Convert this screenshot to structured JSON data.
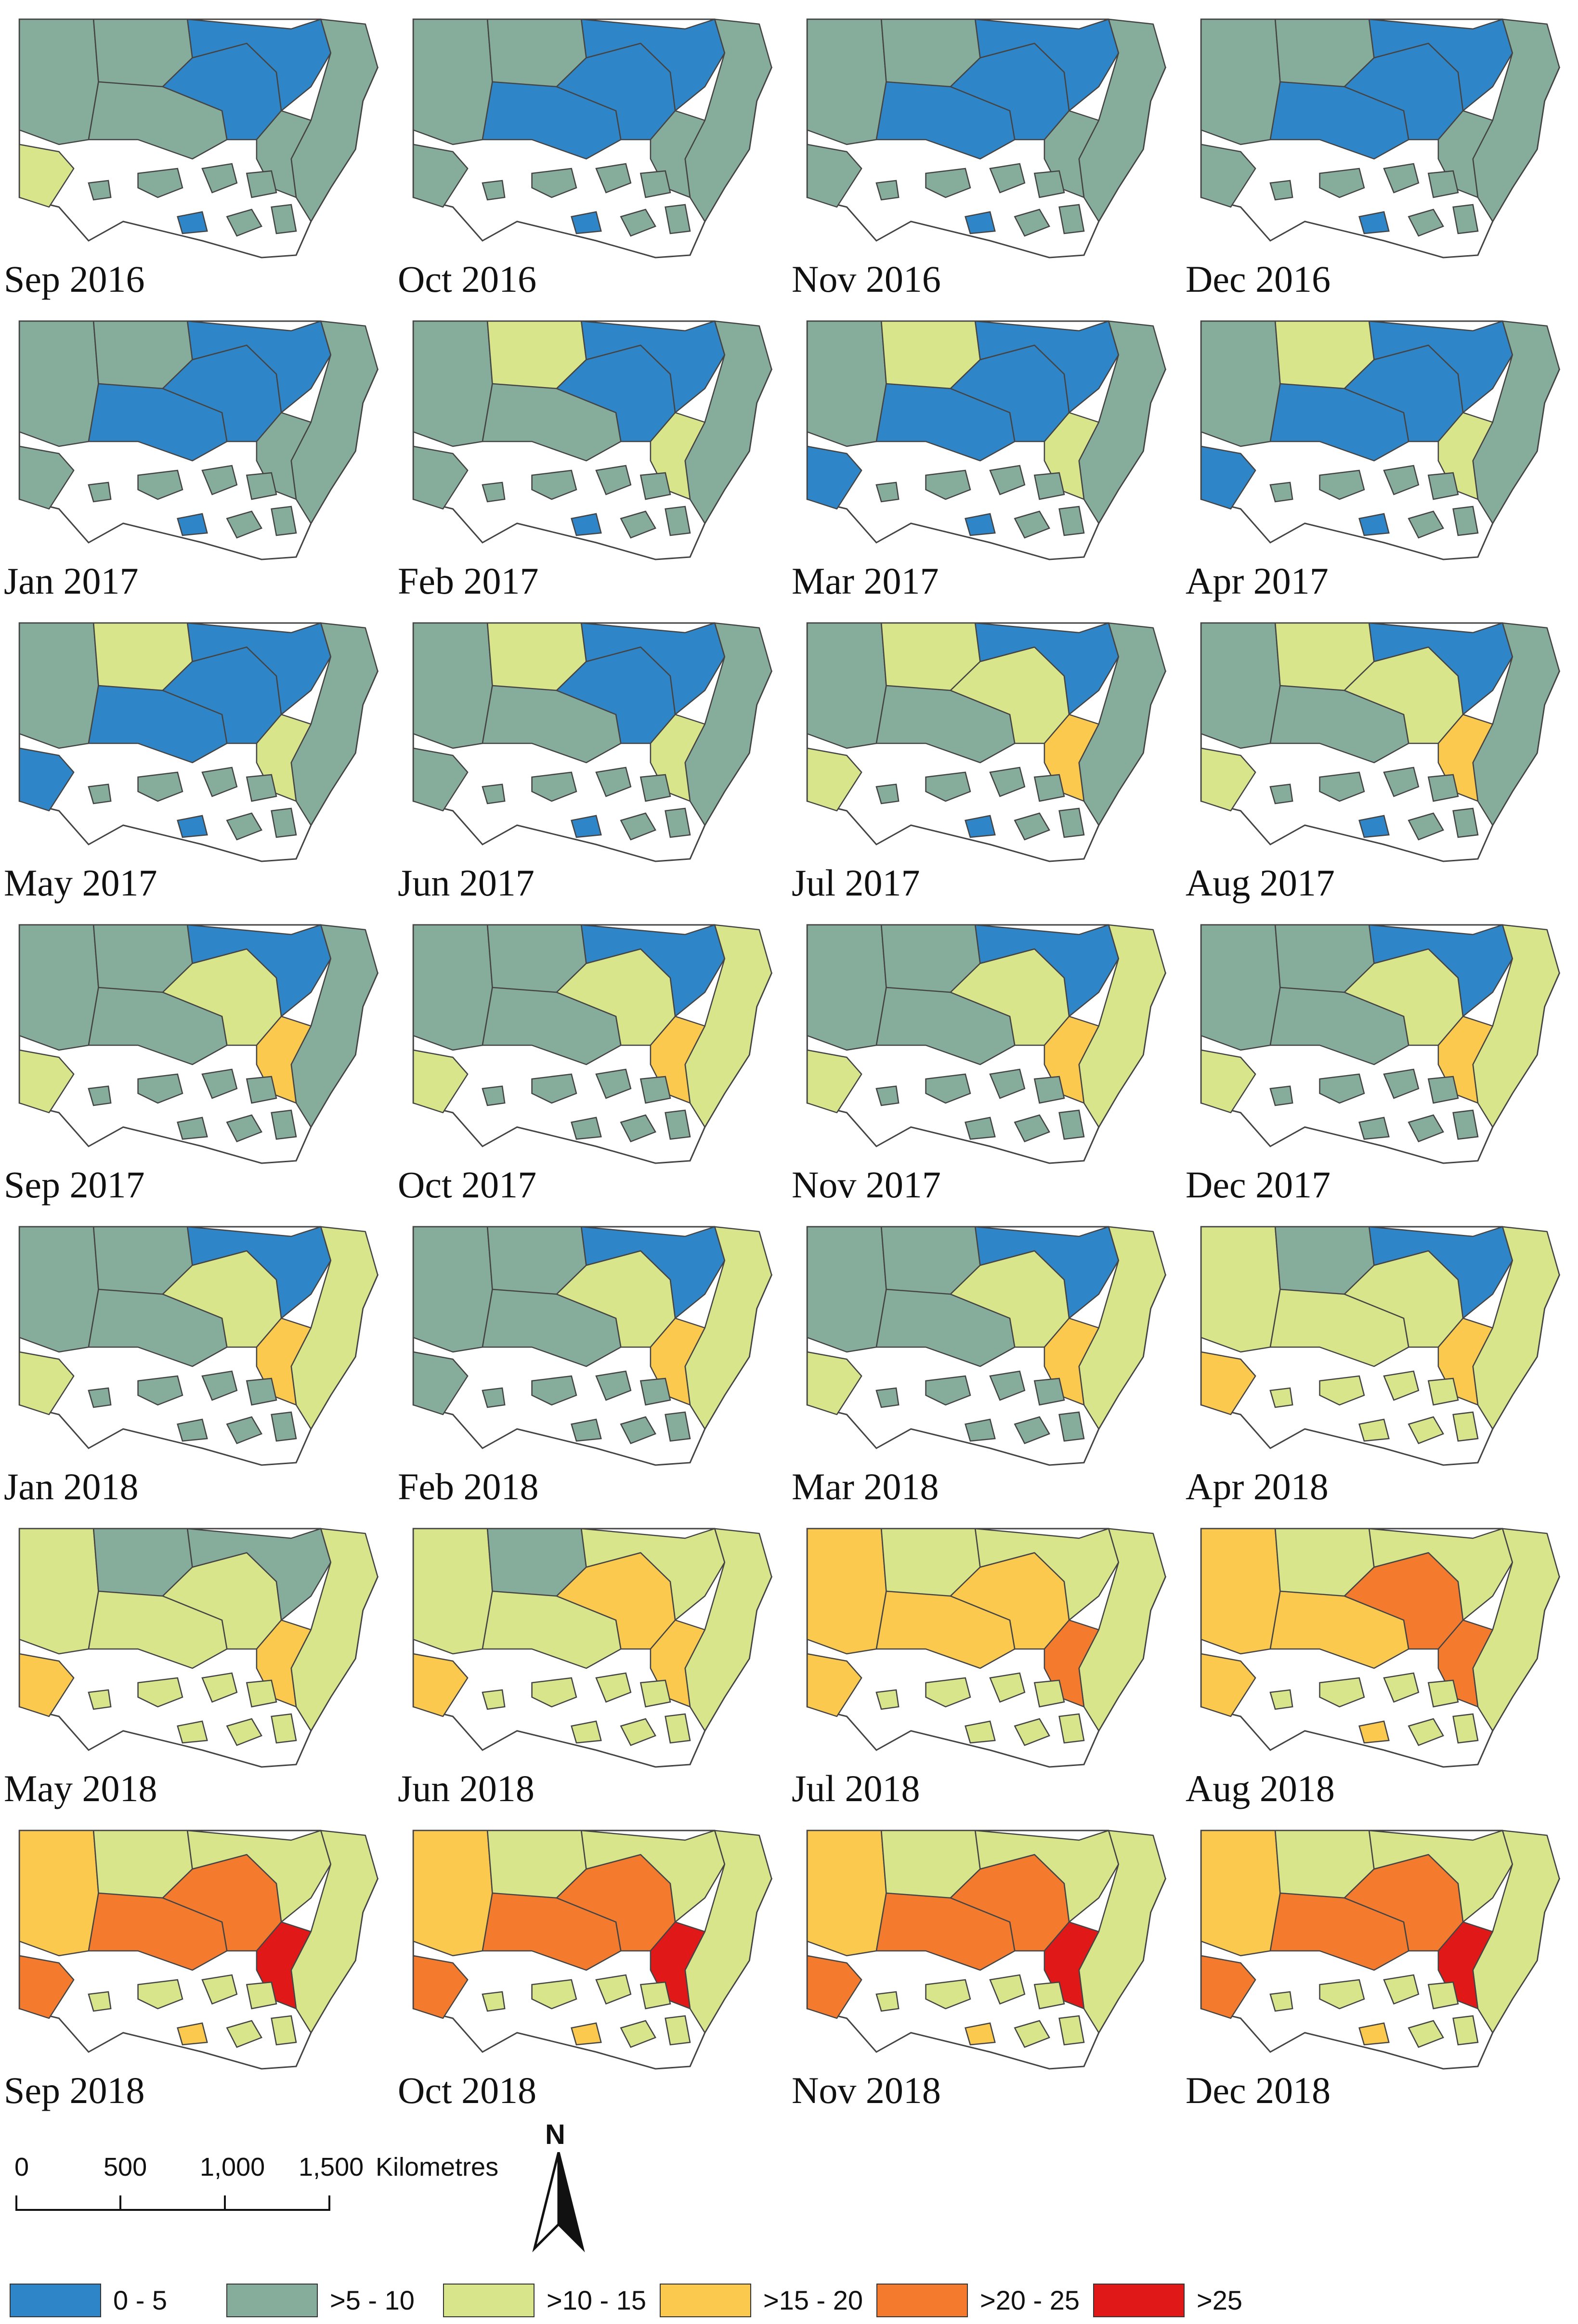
{
  "colors": {
    "0-5": "#2e86c9",
    ">5-10": "#86ad9b",
    ">10-15": "#d9e58a",
    ">15-20": "#fbc94e",
    ">20-25": "#f47b2e",
    ">25": "#e01818",
    "outline": "#444444"
  },
  "maps": [
    {
      "label": "Sep 2016",
      "west": ">5-10",
      "nw": ">5-10",
      "cwest": ">5-10",
      "central": "0-5",
      "ne": "0-5",
      "coast": ">5-10",
      "east": ">5-10",
      "sw": ">10-15",
      "south": "0-5",
      "scattered": ">5-10"
    },
    {
      "label": "Oct 2016",
      "west": ">5-10",
      "nw": ">5-10",
      "cwest": "0-5",
      "central": "0-5",
      "ne": "0-5",
      "coast": ">5-10",
      "east": ">5-10",
      "sw": ">5-10",
      "south": "0-5",
      "scattered": ">5-10"
    },
    {
      "label": "Nov 2016",
      "west": ">5-10",
      "nw": ">5-10",
      "cwest": "0-5",
      "central": "0-5",
      "ne": "0-5",
      "coast": ">5-10",
      "east": ">5-10",
      "sw": ">5-10",
      "south": "0-5",
      "scattered": ">5-10"
    },
    {
      "label": "Dec 2016",
      "west": ">5-10",
      "nw": ">5-10",
      "cwest": "0-5",
      "central": "0-5",
      "ne": "0-5",
      "coast": ">5-10",
      "east": ">5-10",
      "sw": ">5-10",
      "south": "0-5",
      "scattered": ">5-10"
    },
    {
      "label": "Jan 2017",
      "west": ">5-10",
      "nw": ">5-10",
      "cwest": "0-5",
      "central": "0-5",
      "ne": "0-5",
      "coast": ">5-10",
      "east": ">5-10",
      "sw": ">5-10",
      "south": "0-5",
      "scattered": ">5-10"
    },
    {
      "label": "Feb 2017",
      "west": ">5-10",
      "nw": ">10-15",
      "cwest": ">5-10",
      "central": "0-5",
      "ne": "0-5",
      "coast": ">5-10",
      "east": ">10-15",
      "sw": ">5-10",
      "south": "0-5",
      "scattered": ">5-10"
    },
    {
      "label": "Mar 2017",
      "west": ">5-10",
      "nw": ">10-15",
      "cwest": "0-5",
      "central": "0-5",
      "ne": "0-5",
      "coast": ">5-10",
      "east": ">10-15",
      "sw": "0-5",
      "south": "0-5",
      "scattered": ">5-10"
    },
    {
      "label": "Apr 2017",
      "west": ">5-10",
      "nw": ">10-15",
      "cwest": "0-5",
      "central": "0-5",
      "ne": "0-5",
      "coast": ">5-10",
      "east": ">10-15",
      "sw": "0-5",
      "south": "0-5",
      "scattered": ">5-10"
    },
    {
      "label": "May 2017",
      "west": ">5-10",
      "nw": ">10-15",
      "cwest": "0-5",
      "central": "0-5",
      "ne": "0-5",
      "coast": ">5-10",
      "east": ">10-15",
      "sw": "0-5",
      "south": "0-5",
      "scattered": ">5-10"
    },
    {
      "label": "Jun 2017",
      "west": ">5-10",
      "nw": ">10-15",
      "cwest": ">5-10",
      "central": "0-5",
      "ne": "0-5",
      "coast": ">5-10",
      "east": ">10-15",
      "sw": ">5-10",
      "south": "0-5",
      "scattered": ">5-10"
    },
    {
      "label": "Jul 2017",
      "west": ">5-10",
      "nw": ">10-15",
      "cwest": ">5-10",
      "central": ">10-15",
      "ne": "0-5",
      "coast": ">5-10",
      "east": ">15-20",
      "sw": ">10-15",
      "south": "0-5",
      "scattered": ">5-10"
    },
    {
      "label": "Aug 2017",
      "west": ">5-10",
      "nw": ">10-15",
      "cwest": ">5-10",
      "central": ">10-15",
      "ne": "0-5",
      "coast": ">5-10",
      "east": ">15-20",
      "sw": ">10-15",
      "south": "0-5",
      "scattered": ">5-10"
    },
    {
      "label": "Sep 2017",
      "west": ">5-10",
      "nw": ">5-10",
      "cwest": ">5-10",
      "central": ">10-15",
      "ne": "0-5",
      "coast": ">5-10",
      "east": ">15-20",
      "sw": ">10-15",
      "south": ">5-10",
      "scattered": ">5-10"
    },
    {
      "label": "Oct 2017",
      "west": ">5-10",
      "nw": ">5-10",
      "cwest": ">5-10",
      "central": ">10-15",
      "ne": "0-5",
      "coast": ">10-15",
      "east": ">15-20",
      "sw": ">10-15",
      "south": ">5-10",
      "scattered": ">5-10"
    },
    {
      "label": "Nov 2017",
      "west": ">5-10",
      "nw": ">5-10",
      "cwest": ">5-10",
      "central": ">10-15",
      "ne": "0-5",
      "coast": ">10-15",
      "east": ">15-20",
      "sw": ">10-15",
      "south": ">5-10",
      "scattered": ">5-10"
    },
    {
      "label": "Dec 2017",
      "west": ">5-10",
      "nw": ">5-10",
      "cwest": ">5-10",
      "central": ">10-15",
      "ne": "0-5",
      "coast": ">10-15",
      "east": ">15-20",
      "sw": ">10-15",
      "south": ">5-10",
      "scattered": ">5-10"
    },
    {
      "label": "Jan 2018",
      "west": ">5-10",
      "nw": ">5-10",
      "cwest": ">5-10",
      "central": ">10-15",
      "ne": "0-5",
      "coast": ">10-15",
      "east": ">15-20",
      "sw": ">10-15",
      "south": ">5-10",
      "scattered": ">5-10"
    },
    {
      "label": "Feb 2018",
      "west": ">5-10",
      "nw": ">5-10",
      "cwest": ">5-10",
      "central": ">10-15",
      "ne": "0-5",
      "coast": ">10-15",
      "east": ">15-20",
      "sw": ">5-10",
      "south": ">5-10",
      "scattered": ">5-10"
    },
    {
      "label": "Mar 2018",
      "west": ">5-10",
      "nw": ">5-10",
      "cwest": ">5-10",
      "central": ">10-15",
      "ne": "0-5",
      "coast": ">10-15",
      "east": ">15-20",
      "sw": ">10-15",
      "south": ">5-10",
      "scattered": ">5-10"
    },
    {
      "label": "Apr 2018",
      "west": ">10-15",
      "nw": ">5-10",
      "cwest": ">10-15",
      "central": ">10-15",
      "ne": "0-5",
      "coast": ">10-15",
      "east": ">15-20",
      "sw": ">15-20",
      "south": ">10-15",
      "scattered": ">10-15"
    },
    {
      "label": "May 2018",
      "west": ">10-15",
      "nw": ">5-10",
      "cwest": ">10-15",
      "central": ">10-15",
      "ne": ">5-10",
      "coast": ">10-15",
      "east": ">15-20",
      "sw": ">15-20",
      "south": ">10-15",
      "scattered": ">10-15"
    },
    {
      "label": "Jun 2018",
      "west": ">10-15",
      "nw": ">5-10",
      "cwest": ">10-15",
      "central": ">15-20",
      "ne": ">10-15",
      "coast": ">10-15",
      "east": ">15-20",
      "sw": ">15-20",
      "south": ">10-15",
      "scattered": ">10-15"
    },
    {
      "label": "Jul 2018",
      "west": ">15-20",
      "nw": ">10-15",
      "cwest": ">15-20",
      "central": ">15-20",
      "ne": ">10-15",
      "coast": ">10-15",
      "east": ">20-25",
      "sw": ">15-20",
      "south": ">10-15",
      "scattered": ">10-15"
    },
    {
      "label": "Aug 2018",
      "west": ">15-20",
      "nw": ">10-15",
      "cwest": ">15-20",
      "central": ">20-25",
      "ne": ">10-15",
      "coast": ">10-15",
      "east": ">20-25",
      "sw": ">15-20",
      "south": ">15-20",
      "scattered": ">10-15"
    },
    {
      "label": "Sep 2018",
      "west": ">15-20",
      "nw": ">10-15",
      "cwest": ">20-25",
      "central": ">20-25",
      "ne": ">10-15",
      "coast": ">10-15",
      "east": ">25",
      "sw": ">20-25",
      "south": ">15-20",
      "scattered": ">10-15"
    },
    {
      "label": "Oct 2018",
      "west": ">15-20",
      "nw": ">10-15",
      "cwest": ">20-25",
      "central": ">20-25",
      "ne": ">10-15",
      "coast": ">10-15",
      "east": ">25",
      "sw": ">20-25",
      "south": ">15-20",
      "scattered": ">10-15"
    },
    {
      "label": "Nov 2018",
      "west": ">15-20",
      "nw": ">10-15",
      "cwest": ">20-25",
      "central": ">20-25",
      "ne": ">10-15",
      "coast": ">10-15",
      "east": ">25",
      "sw": ">20-25",
      "south": ">15-20",
      "scattered": ">10-15"
    },
    {
      "label": "Dec 2018",
      "west": ">15-20",
      "nw": ">10-15",
      "cwest": ">20-25",
      "central": ">20-25",
      "ne": ">10-15",
      "coast": ">10-15",
      "east": ">25",
      "sw": ">20-25",
      "south": ">15-20",
      "scattered": ">10-15"
    }
  ],
  "scalebar": {
    "ticks": [
      "0",
      "500",
      "1,000",
      "1,500"
    ],
    "unit": "Kilometres"
  },
  "north_arrow": {
    "letter": "N",
    "icon": "north-arrow-icon"
  },
  "legend": [
    {
      "label": "0 - 5",
      "key": "0-5"
    },
    {
      "label": ">5 - 10",
      "key": ">5-10"
    },
    {
      "label": ">10 - 15",
      "key": ">10-15"
    },
    {
      "label": ">15 - 20",
      "key": ">15-20"
    },
    {
      "label": ">20 - 25",
      "key": ">20-25"
    },
    {
      "label": ">25",
      "key": ">25"
    }
  ]
}
